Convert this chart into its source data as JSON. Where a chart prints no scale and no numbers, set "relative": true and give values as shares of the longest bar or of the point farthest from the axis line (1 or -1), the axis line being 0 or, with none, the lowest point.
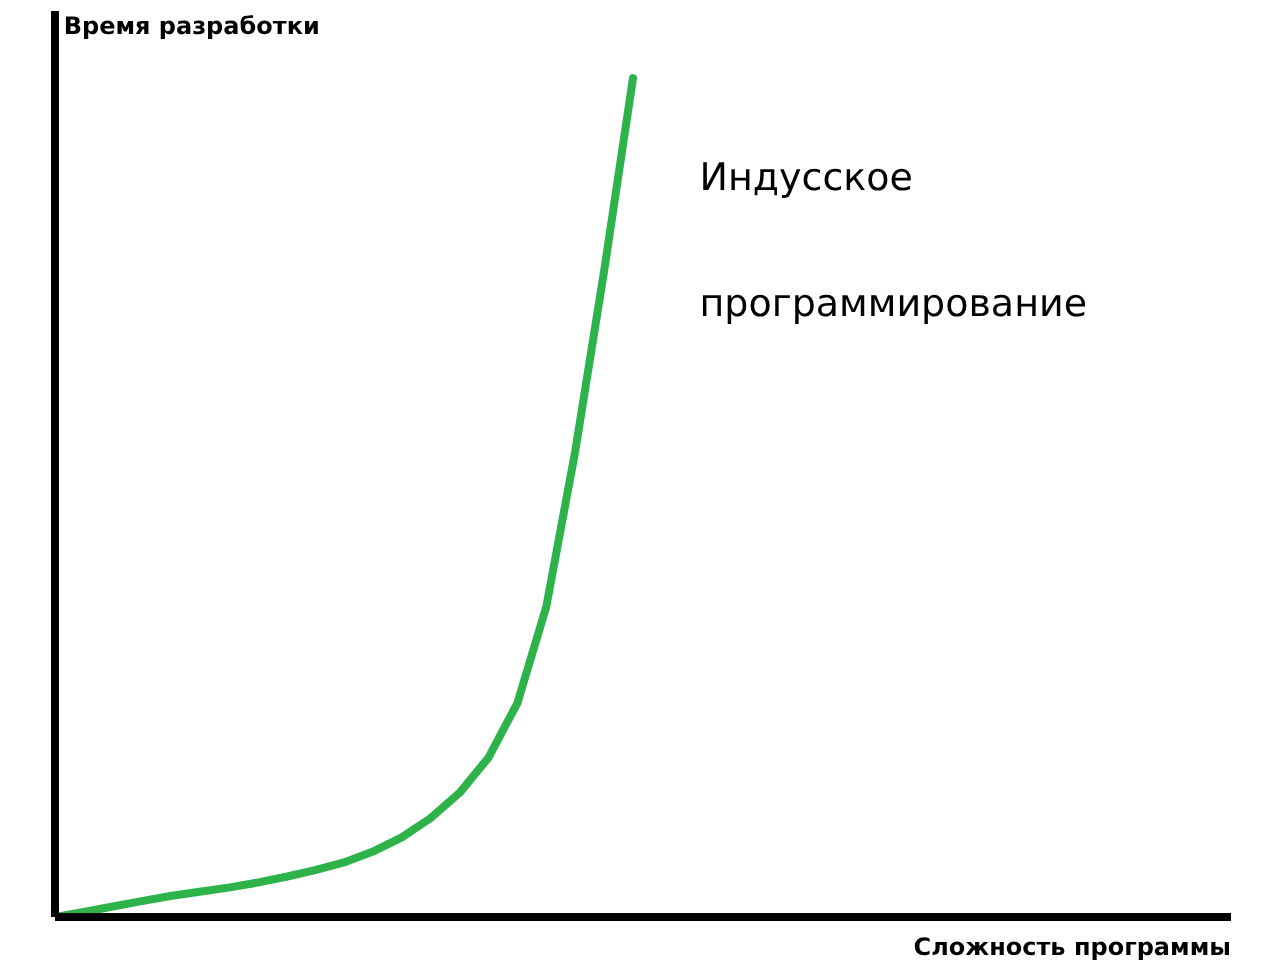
{
  "chart_data": {
    "type": "line",
    "relative": true,
    "xlabel": "Сложность программы",
    "ylabel": "Время разработки",
    "categories": [
      null,
      null,
      null,
      null,
      null,
      null,
      null,
      null,
      null,
      null,
      null,
      null,
      null,
      null,
      null,
      null,
      null,
      null,
      null,
      null,
      null,
      null,
      null,
      null,
      null,
      null,
      null,
      null,
      null,
      null,
      null,
      null,
      null,
      null,
      null,
      null,
      null,
      null,
      null,
      null,
      null
    ],
    "series": [
      {
        "name": "Индусское программирование",
        "color": "#2db34a",
        "values": [
          0,
          0.006,
          0.0125,
          0.019,
          0.025,
          0.03,
          0.035,
          0.041,
          0.048,
          0.056,
          0.065,
          0.078,
          0.095,
          0.118,
          0.148,
          0.19,
          0.255,
          0.37,
          0.555,
          0.77,
          1.0,
          null,
          null,
          null,
          null,
          null,
          null,
          null,
          null,
          null,
          null,
          null,
          null,
          null,
          null,
          null,
          null,
          null,
          null,
          null,
          null
        ]
      }
    ],
    "grid": false,
    "legend": false,
    "tick_labels": false,
    "marker": "none",
    "line_style": "solid"
  }
}
